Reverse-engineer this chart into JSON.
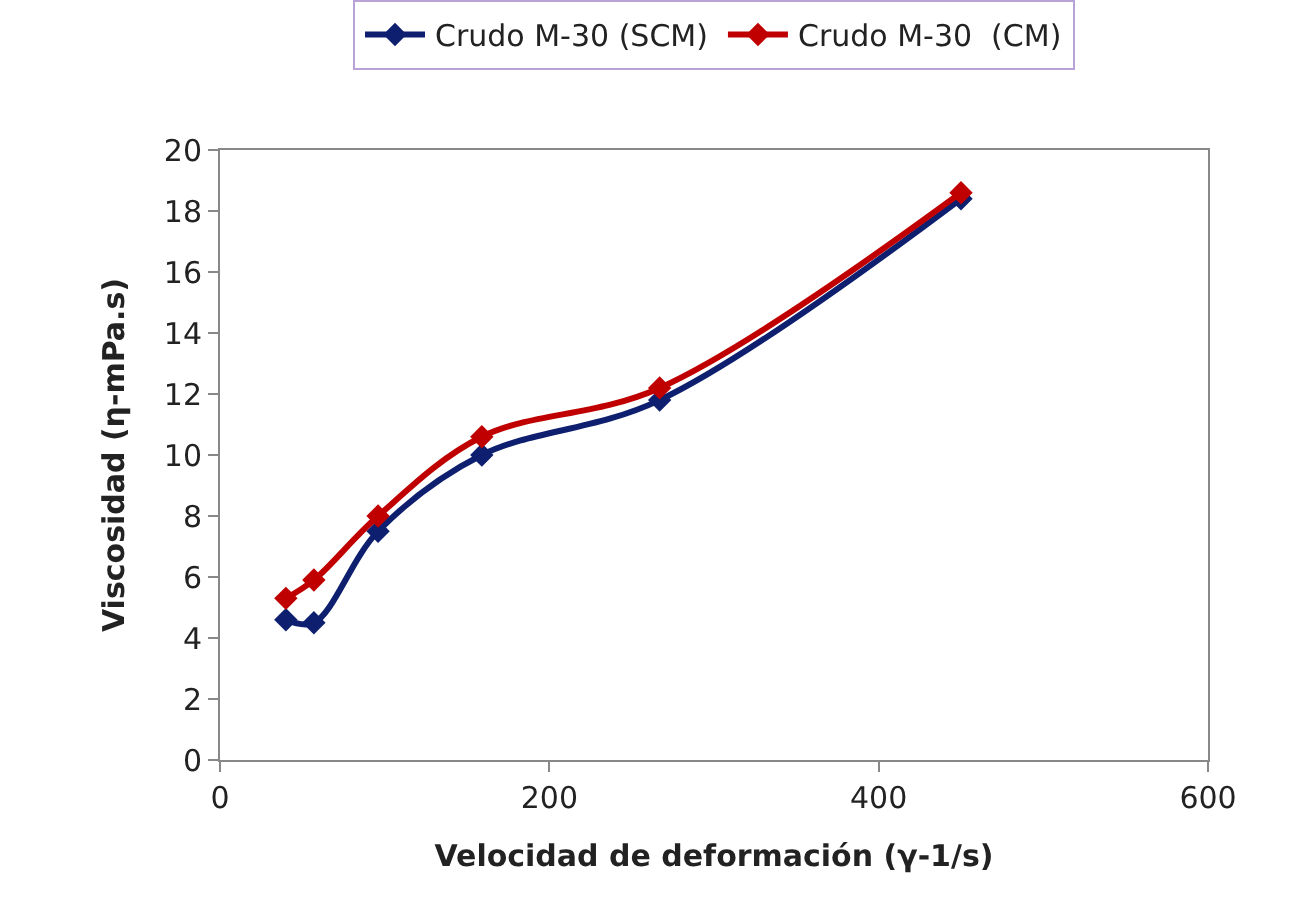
{
  "chart_data": {
    "type": "line",
    "xlabel": "Velocidad de deformación (γ-1/s)",
    "ylabel": "Viscosidad (η-mPa.s)",
    "x": [
      40,
      57,
      96,
      159,
      267,
      450
    ],
    "series": [
      {
        "name": "Crudo M-30 (SCM)",
        "color": "#0d1f6e",
        "values": [
          4.6,
          4.5,
          7.5,
          10.0,
          11.8,
          18.4
        ]
      },
      {
        "name": "Crudo M-30  (CM)",
        "color": "#c00000",
        "values": [
          5.3,
          5.9,
          8.0,
          10.6,
          12.2,
          18.6
        ]
      }
    ],
    "xlim": [
      0,
      600
    ],
    "xticks": [
      0,
      200,
      400,
      600
    ],
    "ylim": [
      0,
      20
    ],
    "yticks": [
      0,
      2,
      4,
      6,
      8,
      10,
      12,
      14,
      16,
      18,
      20
    ],
    "legend": "top",
    "marker": "diamond",
    "line_style": "solid"
  }
}
